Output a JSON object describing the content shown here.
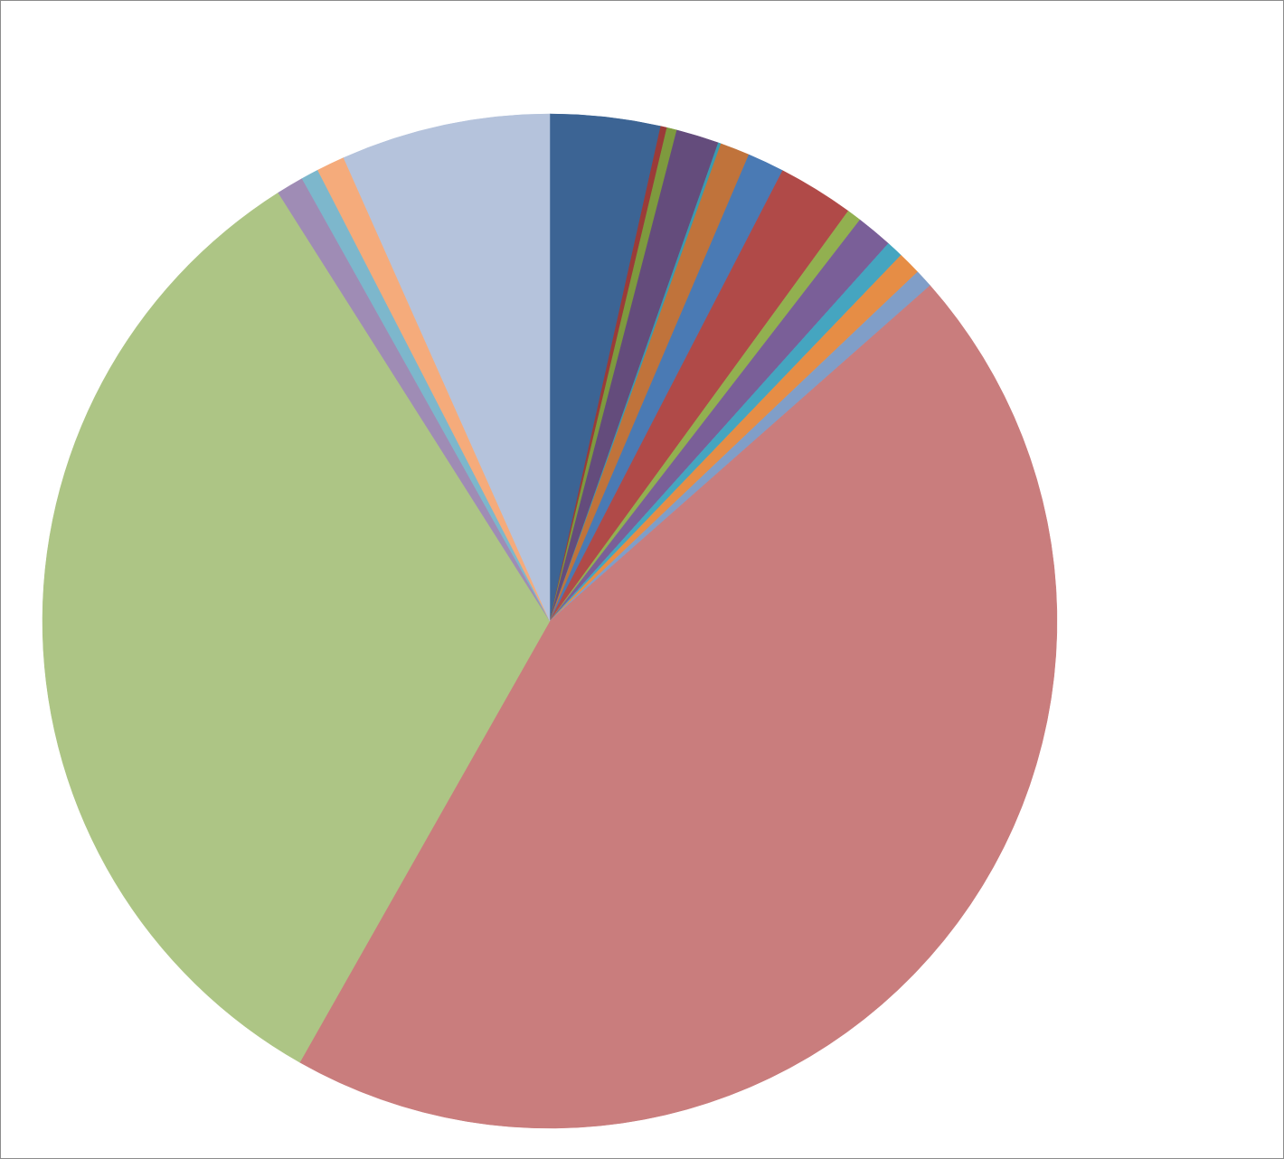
{
  "chart_data": {
    "type": "pie",
    "values": [
      3.51,
      0.2,
      0.32,
      1.36,
      0.09,
      0.94,
      1.17,
      2.42,
      0.46,
      1.16,
      0.54,
      0.74,
      0.58,
      44.7,
      32.8,
      0.87,
      0.56,
      0.9,
      6.66
    ],
    "colors": [
      "#3c6494",
      "#9b3b38",
      "#7e9a3e",
      "#644c7c",
      "#3a9bb0",
      "#c0733b",
      "#4a7ab4",
      "#b04a48",
      "#92b050",
      "#7a5f98",
      "#45a5c0",
      "#e68d45",
      "#809ec8",
      "#c97d7d",
      "#adc585",
      "#9f8cb5",
      "#7db7cc",
      "#f5ab7b",
      "#b5c3dc"
    ]
  }
}
